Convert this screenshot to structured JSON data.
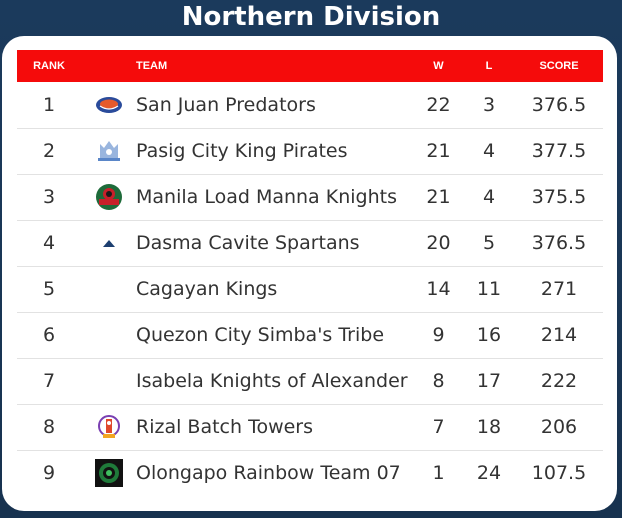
{
  "page_title": "Northern Division",
  "headers": {
    "rank": "RANK",
    "logo": "",
    "team": "TEAM",
    "w": "W",
    "l": "L",
    "score": "SCORE"
  },
  "colors": {
    "header_bg": "#f50b0b",
    "page_bg": "#1b3a5c"
  },
  "rows": [
    {
      "rank": "1",
      "team": "San Juan Predators",
      "w": "22",
      "l": "3",
      "score": "376.5",
      "logo": "predators-logo"
    },
    {
      "rank": "2",
      "team": "Pasig City King Pirates",
      "w": "21",
      "l": "4",
      "score": "377.5",
      "logo": "pirates-logo"
    },
    {
      "rank": "3",
      "team": "Manila Load Manna Knights",
      "w": "21",
      "l": "4",
      "score": "375.5",
      "logo": "knights-logo"
    },
    {
      "rank": "4",
      "team": "Dasma Cavite Spartans",
      "w": "20",
      "l": "5",
      "score": "376.5",
      "logo": "spartans-logo"
    },
    {
      "rank": "5",
      "team": "Cagayan Kings",
      "w": "14",
      "l": "11",
      "score": "271",
      "logo": ""
    },
    {
      "rank": "6",
      "team": "Quezon City Simba's Tribe",
      "w": "9",
      "l": "16",
      "score": "214",
      "logo": ""
    },
    {
      "rank": "7",
      "team": "Isabela Knights of Alexander",
      "w": "8",
      "l": "17",
      "score": "222",
      "logo": ""
    },
    {
      "rank": "8",
      "team": "Rizal Batch Towers",
      "w": "7",
      "l": "18",
      "score": "206",
      "logo": "towers-logo"
    },
    {
      "rank": "9",
      "team": "Olongapo Rainbow Team 07",
      "w": "1",
      "l": "24",
      "score": "107.5",
      "logo": "rainbow-logo"
    }
  ]
}
